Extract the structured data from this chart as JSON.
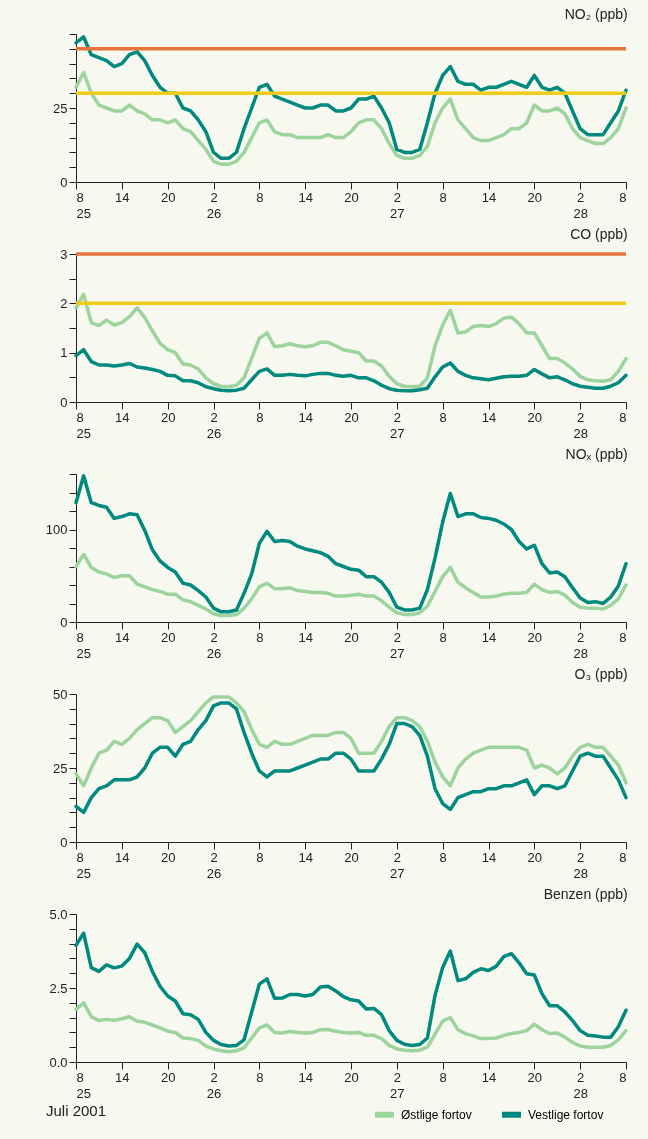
{
  "chart_data": [
    {
      "type": "line",
      "title": "NO₂ (ppb)",
      "x": [
        "2001-07-25T08:00",
        "2001-07-25T09:00",
        "2001-07-25T10:00",
        "2001-07-25T11:00",
        "2001-07-25T12:00",
        "2001-07-25T13:00",
        "2001-07-25T14:00",
        "2001-07-25T15:00",
        "2001-07-25T16:00",
        "2001-07-25T17:00",
        "2001-07-25T18:00",
        "2001-07-25T19:00",
        "2001-07-25T20:00",
        "2001-07-25T21:00",
        "2001-07-25T22:00",
        "2001-07-25T23:00",
        "2001-07-26T00:00",
        "2001-07-26T01:00",
        "2001-07-26T02:00",
        "2001-07-26T03:00",
        "2001-07-26T04:00",
        "2001-07-26T05:00",
        "2001-07-26T06:00",
        "2001-07-26T07:00",
        "2001-07-26T08:00",
        "2001-07-26T09:00",
        "2001-07-26T10:00",
        "2001-07-26T11:00",
        "2001-07-26T12:00",
        "2001-07-26T13:00",
        "2001-07-26T14:00",
        "2001-07-26T15:00",
        "2001-07-26T16:00",
        "2001-07-26T17:00",
        "2001-07-26T18:00",
        "2001-07-26T19:00",
        "2001-07-26T20:00",
        "2001-07-26T21:00",
        "2001-07-26T22:00",
        "2001-07-26T23:00",
        "2001-07-27T00:00",
        "2001-07-27T01:00",
        "2001-07-27T02:00",
        "2001-07-27T03:00",
        "2001-07-27T04:00",
        "2001-07-27T05:00",
        "2001-07-27T06:00",
        "2001-07-27T07:00",
        "2001-07-27T08:00",
        "2001-07-27T09:00",
        "2001-07-27T10:00",
        "2001-07-27T11:00",
        "2001-07-27T12:00",
        "2001-07-27T13:00",
        "2001-07-27T14:00",
        "2001-07-27T15:00",
        "2001-07-27T16:00",
        "2001-07-27T17:00",
        "2001-07-27T18:00",
        "2001-07-27T19:00",
        "2001-07-27T20:00",
        "2001-07-27T21:00",
        "2001-07-27T22:00",
        "2001-07-27T23:00",
        "2001-07-28T00:00",
        "2001-07-28T01:00",
        "2001-07-28T02:00",
        "2001-07-28T03:00",
        "2001-07-28T04:00",
        "2001-07-28T05:00",
        "2001-07-28T06:00",
        "2001-07-28T07:00",
        "2001-07-28T08:00"
      ],
      "xlim": [
        "2001-07-25T08:00",
        "2001-07-28T08:00"
      ],
      "xticks": [
        {
          "value": "2001-07-25T08:00",
          "label": "8\n25"
        },
        {
          "value": "2001-07-25T14:00",
          "label": "14"
        },
        {
          "value": "2001-07-25T20:00",
          "label": "20"
        },
        {
          "value": "2001-07-26T02:00",
          "label": "2\n26"
        },
        {
          "value": "2001-07-26T08:00",
          "label": "8"
        },
        {
          "value": "2001-07-26T14:00",
          "label": "14"
        },
        {
          "value": "2001-07-26T20:00",
          "label": "20"
        },
        {
          "value": "2001-07-27T02:00",
          "label": "2\n27"
        },
        {
          "value": "2001-07-27T08:00",
          "label": "8"
        },
        {
          "value": "2001-07-27T14:00",
          "label": "14"
        },
        {
          "value": "2001-07-27T20:00",
          "label": "20"
        },
        {
          "value": "2001-07-28T02:00",
          "label": "2\n28"
        },
        {
          "value": "2001-07-28T08:00",
          "label": "8"
        }
      ],
      "ylim": [
        0,
        50
      ],
      "yticks": [
        0,
        {
          "value": 5,
          "label": null
        },
        {
          "value": 10,
          "label": null
        },
        {
          "value": 15,
          "label": null
        },
        {
          "value": 20,
          "label": null
        },
        25,
        {
          "value": 30,
          "label": null
        },
        {
          "value": 35,
          "label": null
        },
        {
          "value": 40,
          "label": null
        },
        {
          "value": 45,
          "label": null
        },
        {
          "value": 50,
          "label": null
        }
      ],
      "ref_lines": [
        {
          "axis": "y",
          "value": 45,
          "color": "#e8743b"
        },
        {
          "axis": "y",
          "value": 30,
          "color": "#f0cc1a"
        }
      ],
      "series": [
        {
          "color": "#9dd49e",
          "values": [
            32,
            37,
            30,
            26,
            25,
            24,
            24,
            26,
            24,
            23,
            21,
            21,
            20,
            21,
            18,
            17,
            14,
            11,
            7,
            6,
            6,
            7,
            10,
            15,
            20,
            21,
            17,
            16,
            16,
            15,
            15,
            15,
            15,
            16,
            15,
            15,
            17,
            20,
            21,
            21,
            18,
            13,
            9,
            8,
            8,
            9,
            12,
            20,
            25,
            28,
            21,
            18,
            15,
            14,
            14,
            15,
            16,
            18,
            18,
            20,
            26,
            24,
            24,
            25,
            23,
            18,
            15,
            14,
            13,
            13,
            15,
            18,
            25
          ]
        },
        {
          "color": "#00897e",
          "values": [
            47,
            49,
            43,
            42,
            41,
            39,
            40,
            43,
            44,
            41,
            36,
            32,
            30,
            30,
            25,
            24,
            21,
            17,
            10,
            8,
            8,
            10,
            18,
            25,
            32,
            33,
            29,
            28,
            27,
            26,
            25,
            25,
            26,
            26,
            24,
            24,
            25,
            28,
            28,
            29,
            25,
            20,
            11,
            10,
            10,
            11,
            20,
            30,
            36,
            39,
            34,
            33,
            33,
            31,
            32,
            32,
            33,
            34,
            33,
            32,
            36,
            32,
            31,
            32,
            30,
            24,
            18,
            16,
            16,
            16,
            20,
            24,
            31
          ]
        }
      ]
    },
    {
      "type": "line",
      "title": "CO (ppb)",
      "x": [
        "2001-07-25T08:00",
        "2001-07-25T09:00",
        "2001-07-25T10:00",
        "2001-07-25T11:00",
        "2001-07-25T12:00",
        "2001-07-25T13:00",
        "2001-07-25T14:00",
        "2001-07-25T15:00",
        "2001-07-25T16:00",
        "2001-07-25T17:00",
        "2001-07-25T18:00",
        "2001-07-25T19:00",
        "2001-07-25T20:00",
        "2001-07-25T21:00",
        "2001-07-25T22:00",
        "2001-07-25T23:00",
        "2001-07-26T00:00",
        "2001-07-26T01:00",
        "2001-07-26T02:00",
        "2001-07-26T03:00",
        "2001-07-26T04:00",
        "2001-07-26T05:00",
        "2001-07-26T06:00",
        "2001-07-26T07:00",
        "2001-07-26T08:00",
        "2001-07-26T09:00",
        "2001-07-26T10:00",
        "2001-07-26T11:00",
        "2001-07-26T12:00",
        "2001-07-26T13:00",
        "2001-07-26T14:00",
        "2001-07-26T15:00",
        "2001-07-26T16:00",
        "2001-07-26T17:00",
        "2001-07-26T18:00",
        "2001-07-26T19:00",
        "2001-07-26T20:00",
        "2001-07-26T21:00",
        "2001-07-26T22:00",
        "2001-07-26T23:00",
        "2001-07-27T00:00",
        "2001-07-27T01:00",
        "2001-07-27T02:00",
        "2001-07-27T03:00",
        "2001-07-27T04:00",
        "2001-07-27T05:00",
        "2001-07-27T06:00",
        "2001-07-27T07:00",
        "2001-07-27T08:00",
        "2001-07-27T09:00",
        "2001-07-27T10:00",
        "2001-07-27T11:00",
        "2001-07-27T12:00",
        "2001-07-27T13:00",
        "2001-07-27T14:00",
        "2001-07-27T15:00",
        "2001-07-27T16:00",
        "2001-07-27T17:00",
        "2001-07-27T18:00",
        "2001-07-27T19:00",
        "2001-07-27T20:00",
        "2001-07-27T21:00",
        "2001-07-27T22:00",
        "2001-07-27T23:00",
        "2001-07-28T00:00",
        "2001-07-28T01:00",
        "2001-07-28T02:00",
        "2001-07-28T03:00",
        "2001-07-28T04:00",
        "2001-07-28T05:00",
        "2001-07-28T06:00",
        "2001-07-28T07:00",
        "2001-07-28T08:00"
      ],
      "xlim": [
        "2001-07-25T08:00",
        "2001-07-28T08:00"
      ],
      "xticks": [
        {
          "value": "2001-07-25T08:00",
          "label": "8\n25"
        },
        {
          "value": "2001-07-25T14:00",
          "label": "14"
        },
        {
          "value": "2001-07-25T20:00",
          "label": "20"
        },
        {
          "value": "2001-07-26T02:00",
          "label": "2\n26"
        },
        {
          "value": "2001-07-26T08:00",
          "label": "8"
        },
        {
          "value": "2001-07-26T14:00",
          "label": "14"
        },
        {
          "value": "2001-07-26T20:00",
          "label": "20"
        },
        {
          "value": "2001-07-27T02:00",
          "label": "2\n27"
        },
        {
          "value": "2001-07-27T08:00",
          "label": "8"
        },
        {
          "value": "2001-07-27T14:00",
          "label": "14"
        },
        {
          "value": "2001-07-27T20:00",
          "label": "20"
        },
        {
          "value": "2001-07-28T02:00",
          "label": "2\n28"
        },
        {
          "value": "2001-07-28T08:00",
          "label": "8"
        }
      ],
      "ylim": [
        0,
        3
      ],
      "yticks": [
        0,
        {
          "value": 0.5,
          "label": null
        },
        1,
        {
          "value": 1.5,
          "label": null
        },
        2,
        {
          "value": 2.5,
          "label": null
        },
        3
      ],
      "ref_lines": [
        {
          "axis": "y",
          "value": 3,
          "color": "#e8743b"
        },
        {
          "axis": "y",
          "value": 2,
          "color": "#f0cc1a"
        }
      ],
      "series": [
        {
          "color": "#9dd49e",
          "values": [
            1.91,
            2.18,
            1.61,
            1.55,
            1.66,
            1.56,
            1.61,
            1.73,
            1.91,
            1.71,
            1.44,
            1.19,
            1.06,
            1.0,
            0.77,
            0.75,
            0.67,
            0.49,
            0.37,
            0.32,
            0.31,
            0.34,
            0.49,
            0.89,
            1.29,
            1.4,
            1.12,
            1.14,
            1.18,
            1.14,
            1.12,
            1.14,
            1.21,
            1.21,
            1.14,
            1.06,
            1.03,
            1.0,
            0.83,
            0.83,
            0.73,
            0.52,
            0.37,
            0.32,
            0.31,
            0.32,
            0.49,
            1.14,
            1.56,
            1.86,
            1.4,
            1.42,
            1.53,
            1.55,
            1.53,
            1.59,
            1.7,
            1.72,
            1.59,
            1.4,
            1.4,
            1.14,
            0.88,
            0.88,
            0.79,
            0.67,
            0.52,
            0.45,
            0.43,
            0.42,
            0.45,
            0.62,
            0.88
          ]
        },
        {
          "color": "#00897e",
          "values": [
            0.94,
            1.06,
            0.82,
            0.75,
            0.75,
            0.73,
            0.75,
            0.78,
            0.71,
            0.69,
            0.66,
            0.62,
            0.54,
            0.53,
            0.43,
            0.43,
            0.39,
            0.31,
            0.27,
            0.24,
            0.23,
            0.24,
            0.28,
            0.45,
            0.62,
            0.67,
            0.54,
            0.54,
            0.56,
            0.54,
            0.53,
            0.56,
            0.58,
            0.58,
            0.54,
            0.52,
            0.54,
            0.49,
            0.49,
            0.43,
            0.34,
            0.27,
            0.24,
            0.23,
            0.23,
            0.25,
            0.28,
            0.51,
            0.71,
            0.79,
            0.62,
            0.54,
            0.49,
            0.47,
            0.45,
            0.48,
            0.51,
            0.52,
            0.52,
            0.54,
            0.66,
            0.57,
            0.49,
            0.51,
            0.45,
            0.37,
            0.32,
            0.3,
            0.28,
            0.28,
            0.32,
            0.39,
            0.54
          ]
        }
      ]
    },
    {
      "type": "line",
      "title": "NOₓ (ppb)",
      "x": [
        "2001-07-25T08:00",
        "2001-07-25T09:00",
        "2001-07-25T10:00",
        "2001-07-25T11:00",
        "2001-07-25T12:00",
        "2001-07-25T13:00",
        "2001-07-25T14:00",
        "2001-07-25T15:00",
        "2001-07-25T16:00",
        "2001-07-25T17:00",
        "2001-07-25T18:00",
        "2001-07-25T19:00",
        "2001-07-25T20:00",
        "2001-07-25T21:00",
        "2001-07-25T22:00",
        "2001-07-25T23:00",
        "2001-07-26T00:00",
        "2001-07-26T01:00",
        "2001-07-26T02:00",
        "2001-07-26T03:00",
        "2001-07-26T04:00",
        "2001-07-26T05:00",
        "2001-07-26T06:00",
        "2001-07-26T07:00",
        "2001-07-26T08:00",
        "2001-07-26T09:00",
        "2001-07-26T10:00",
        "2001-07-26T11:00",
        "2001-07-26T12:00",
        "2001-07-26T13:00",
        "2001-07-26T14:00",
        "2001-07-26T15:00",
        "2001-07-26T16:00",
        "2001-07-26T17:00",
        "2001-07-26T18:00",
        "2001-07-26T19:00",
        "2001-07-26T20:00",
        "2001-07-26T21:00",
        "2001-07-26T22:00",
        "2001-07-26T23:00",
        "2001-07-27T00:00",
        "2001-07-27T01:00",
        "2001-07-27T02:00",
        "2001-07-27T03:00",
        "2001-07-27T04:00",
        "2001-07-27T05:00",
        "2001-07-27T06:00",
        "2001-07-27T07:00",
        "2001-07-27T08:00",
        "2001-07-27T09:00",
        "2001-07-27T10:00",
        "2001-07-27T11:00",
        "2001-07-27T12:00",
        "2001-07-27T13:00",
        "2001-07-27T14:00",
        "2001-07-27T15:00",
        "2001-07-27T16:00",
        "2001-07-27T17:00",
        "2001-07-27T18:00",
        "2001-07-27T19:00",
        "2001-07-27T20:00",
        "2001-07-27T21:00",
        "2001-07-27T22:00",
        "2001-07-27T23:00",
        "2001-07-28T00:00",
        "2001-07-28T01:00",
        "2001-07-28T02:00",
        "2001-07-28T03:00",
        "2001-07-28T04:00",
        "2001-07-28T05:00",
        "2001-07-28T06:00",
        "2001-07-28T07:00",
        "2001-07-28T08:00"
      ],
      "xlim": [
        "2001-07-25T08:00",
        "2001-07-28T08:00"
      ],
      "xticks": [
        {
          "value": "2001-07-25T08:00",
          "label": "8\n25"
        },
        {
          "value": "2001-07-25T14:00",
          "label": "14"
        },
        {
          "value": "2001-07-25T20:00",
          "label": "20"
        },
        {
          "value": "2001-07-26T02:00",
          "label": "2\n26"
        },
        {
          "value": "2001-07-26T08:00",
          "label": "8"
        },
        {
          "value": "2001-07-26T14:00",
          "label": "14"
        },
        {
          "value": "2001-07-26T20:00",
          "label": "20"
        },
        {
          "value": "2001-07-27T02:00",
          "label": "2\n27"
        },
        {
          "value": "2001-07-27T08:00",
          "label": "8"
        },
        {
          "value": "2001-07-27T14:00",
          "label": "14"
        },
        {
          "value": "2001-07-27T20:00",
          "label": "20"
        },
        {
          "value": "2001-07-28T02:00",
          "label": "2\n28"
        },
        {
          "value": "2001-07-28T08:00",
          "label": "8"
        }
      ],
      "ylim": [
        0,
        160
      ],
      "yticks": [
        0,
        {
          "value": 20,
          "label": null
        },
        {
          "value": 40,
          "label": null
        },
        {
          "value": 60,
          "label": null
        },
        {
          "value": 80,
          "label": null
        },
        100,
        {
          "value": 120,
          "label": null
        },
        {
          "value": 140,
          "label": null
        },
        {
          "value": 160,
          "label": null
        }
      ],
      "series": [
        {
          "color": "#9dd49e",
          "values": [
            60,
            73,
            59,
            54,
            52,
            48,
            50,
            50,
            41,
            38,
            35,
            33,
            30,
            30,
            24,
            22,
            18,
            14,
            9,
            7,
            7,
            8,
            15,
            25,
            38,
            42,
            36,
            36,
            37,
            34,
            33,
            32,
            32,
            31,
            28,
            28,
            29,
            30,
            28,
            28,
            23,
            16,
            10,
            8,
            8,
            10,
            17,
            33,
            49,
            59,
            43,
            37,
            32,
            27,
            27,
            28,
            30,
            31,
            31,
            32,
            41,
            35,
            32,
            33,
            29,
            21,
            16,
            15,
            15,
            14,
            18,
            25,
            40
          ]
        },
        {
          "color": "#00897e",
          "values": [
            129,
            158,
            129,
            126,
            124,
            112,
            114,
            117,
            116,
            99,
            78,
            66,
            59,
            54,
            42,
            40,
            34,
            27,
            15,
            11,
            11,
            13,
            31,
            52,
            85,
            98,
            87,
            88,
            87,
            82,
            79,
            77,
            75,
            71,
            63,
            60,
            57,
            56,
            49,
            49,
            43,
            32,
            16,
            13,
            13,
            15,
            35,
            69,
            108,
            139,
            114,
            117,
            117,
            113,
            112,
            110,
            106,
            100,
            87,
            79,
            83,
            63,
            53,
            54,
            49,
            37,
            26,
            21,
            22,
            20,
            27,
            39,
            63
          ]
        }
      ]
    },
    {
      "type": "line",
      "title": "O₃ (ppb)",
      "x": [
        "2001-07-25T08:00",
        "2001-07-25T09:00",
        "2001-07-25T10:00",
        "2001-07-25T11:00",
        "2001-07-25T12:00",
        "2001-07-25T13:00",
        "2001-07-25T14:00",
        "2001-07-25T15:00",
        "2001-07-25T16:00",
        "2001-07-25T17:00",
        "2001-07-25T18:00",
        "2001-07-25T19:00",
        "2001-07-25T20:00",
        "2001-07-25T21:00",
        "2001-07-25T22:00",
        "2001-07-25T23:00",
        "2001-07-26T00:00",
        "2001-07-26T01:00",
        "2001-07-26T02:00",
        "2001-07-26T03:00",
        "2001-07-26T04:00",
        "2001-07-26T05:00",
        "2001-07-26T06:00",
        "2001-07-26T07:00",
        "2001-07-26T08:00",
        "2001-07-26T09:00",
        "2001-07-26T10:00",
        "2001-07-26T11:00",
        "2001-07-26T12:00",
        "2001-07-26T13:00",
        "2001-07-26T14:00",
        "2001-07-26T15:00",
        "2001-07-26T16:00",
        "2001-07-26T17:00",
        "2001-07-26T18:00",
        "2001-07-26T19:00",
        "2001-07-26T20:00",
        "2001-07-26T21:00",
        "2001-07-26T22:00",
        "2001-07-26T23:00",
        "2001-07-27T00:00",
        "2001-07-27T01:00",
        "2001-07-27T02:00",
        "2001-07-27T03:00",
        "2001-07-27T04:00",
        "2001-07-27T05:00",
        "2001-07-27T06:00",
        "2001-07-27T07:00",
        "2001-07-27T08:00",
        "2001-07-27T09:00",
        "2001-07-27T10:00",
        "2001-07-27T11:00",
        "2001-07-27T12:00",
        "2001-07-27T13:00",
        "2001-07-27T14:00",
        "2001-07-27T15:00",
        "2001-07-27T16:00",
        "2001-07-27T17:00",
        "2001-07-27T18:00",
        "2001-07-27T19:00",
        "2001-07-27T20:00",
        "2001-07-27T21:00",
        "2001-07-27T22:00",
        "2001-07-27T23:00",
        "2001-07-28T00:00",
        "2001-07-28T01:00",
        "2001-07-28T02:00",
        "2001-07-28T03:00",
        "2001-07-28T04:00",
        "2001-07-28T05:00",
        "2001-07-28T06:00",
        "2001-07-28T07:00",
        "2001-07-28T08:00"
      ],
      "xlim": [
        "2001-07-25T08:00",
        "2001-07-28T08:00"
      ],
      "xticks": [
        {
          "value": "2001-07-25T08:00",
          "label": "8\n25"
        },
        {
          "value": "2001-07-25T14:00",
          "label": "14"
        },
        {
          "value": "2001-07-25T20:00",
          "label": "20"
        },
        {
          "value": "2001-07-26T02:00",
          "label": "2\n26"
        },
        {
          "value": "2001-07-26T08:00",
          "label": "8"
        },
        {
          "value": "2001-07-26T14:00",
          "label": "14"
        },
        {
          "value": "2001-07-26T20:00",
          "label": "20"
        },
        {
          "value": "2001-07-27T02:00",
          "label": "2\n27"
        },
        {
          "value": "2001-07-27T08:00",
          "label": "8"
        },
        {
          "value": "2001-07-27T14:00",
          "label": "14"
        },
        {
          "value": "2001-07-27T20:00",
          "label": "20"
        },
        {
          "value": "2001-07-28T02:00",
          "label": "2\n28"
        },
        {
          "value": "2001-07-28T08:00",
          "label": "8"
        }
      ],
      "ylim": [
        0,
        50
      ],
      "yticks": [
        0,
        {
          "value": 5,
          "label": null
        },
        {
          "value": 10,
          "label": null
        },
        {
          "value": 15,
          "label": null
        },
        {
          "value": 20,
          "label": null
        },
        25,
        {
          "value": 30,
          "label": null
        },
        {
          "value": 35,
          "label": null
        },
        {
          "value": 40,
          "label": null
        },
        {
          "value": 45,
          "label": null
        },
        50
      ],
      "series": [
        {
          "color": "#9dd49e",
          "values": [
            23,
            19,
            25,
            30,
            31,
            34,
            33,
            35,
            38,
            40,
            42,
            42,
            41,
            37,
            39,
            41,
            44,
            47,
            49,
            49,
            49,
            47,
            44,
            38,
            33,
            32,
            34,
            33,
            33,
            34,
            35,
            36,
            36,
            36,
            37,
            37,
            35,
            30,
            30,
            30,
            34,
            39,
            42,
            42,
            41,
            39,
            34,
            27,
            22,
            19,
            25,
            28,
            30,
            31,
            32,
            32,
            32,
            32,
            32,
            31,
            25,
            26,
            25,
            23,
            25,
            29,
            32,
            33,
            32,
            32,
            29,
            26,
            20
          ]
        },
        {
          "color": "#00897e",
          "values": [
            12,
            10,
            15,
            18,
            19,
            21,
            21,
            21,
            22,
            25,
            30,
            32,
            32,
            29,
            33,
            34,
            38,
            41,
            46,
            47,
            47,
            45,
            37,
            30,
            24,
            22,
            24,
            24,
            24,
            25,
            26,
            27,
            28,
            28,
            30,
            30,
            28,
            24,
            24,
            24,
            28,
            33,
            40,
            40,
            39,
            36,
            29,
            18,
            13,
            11,
            15,
            16,
            17,
            17,
            18,
            18,
            19,
            19,
            20,
            21,
            16,
            19,
            19,
            18,
            19,
            24,
            29,
            30,
            29,
            29,
            25,
            21,
            15
          ]
        }
      ]
    },
    {
      "type": "line",
      "title": "Benzen (ppb)",
      "x": [
        "2001-07-25T08:00",
        "2001-07-25T09:00",
        "2001-07-25T10:00",
        "2001-07-25T11:00",
        "2001-07-25T12:00",
        "2001-07-25T13:00",
        "2001-07-25T14:00",
        "2001-07-25T15:00",
        "2001-07-25T16:00",
        "2001-07-25T17:00",
        "2001-07-25T18:00",
        "2001-07-25T19:00",
        "2001-07-25T20:00",
        "2001-07-25T21:00",
        "2001-07-25T22:00",
        "2001-07-25T23:00",
        "2001-07-26T00:00",
        "2001-07-26T01:00",
        "2001-07-26T02:00",
        "2001-07-26T03:00",
        "2001-07-26T04:00",
        "2001-07-26T05:00",
        "2001-07-26T06:00",
        "2001-07-26T07:00",
        "2001-07-26T08:00",
        "2001-07-26T09:00",
        "2001-07-26T10:00",
        "2001-07-26T11:00",
        "2001-07-26T12:00",
        "2001-07-26T13:00",
        "2001-07-26T14:00",
        "2001-07-26T15:00",
        "2001-07-26T16:00",
        "2001-07-26T17:00",
        "2001-07-26T18:00",
        "2001-07-26T19:00",
        "2001-07-26T20:00",
        "2001-07-26T21:00",
        "2001-07-26T22:00",
        "2001-07-26T23:00",
        "2001-07-27T00:00",
        "2001-07-27T01:00",
        "2001-07-27T02:00",
        "2001-07-27T03:00",
        "2001-07-27T04:00",
        "2001-07-27T05:00",
        "2001-07-27T06:00",
        "2001-07-27T07:00",
        "2001-07-27T08:00",
        "2001-07-27T09:00",
        "2001-07-27T10:00",
        "2001-07-27T11:00",
        "2001-07-27T12:00",
        "2001-07-27T13:00",
        "2001-07-27T14:00",
        "2001-07-27T15:00",
        "2001-07-27T16:00",
        "2001-07-27T17:00",
        "2001-07-27T18:00",
        "2001-07-27T19:00",
        "2001-07-27T20:00",
        "2001-07-27T21:00",
        "2001-07-27T22:00",
        "2001-07-27T23:00",
        "2001-07-28T00:00",
        "2001-07-28T01:00",
        "2001-07-28T02:00",
        "2001-07-28T03:00",
        "2001-07-28T04:00",
        "2001-07-28T05:00",
        "2001-07-28T06:00",
        "2001-07-28T07:00",
        "2001-07-28T08:00"
      ],
      "xlim": [
        "2001-07-25T08:00",
        "2001-07-28T08:00"
      ],
      "xticks": [
        {
          "value": "2001-07-25T08:00",
          "label": "8\n25"
        },
        {
          "value": "2001-07-25T14:00",
          "label": "14"
        },
        {
          "value": "2001-07-25T20:00",
          "label": "20"
        },
        {
          "value": "2001-07-26T02:00",
          "label": "2\n26"
        },
        {
          "value": "2001-07-26T08:00",
          "label": "8"
        },
        {
          "value": "2001-07-26T14:00",
          "label": "14"
        },
        {
          "value": "2001-07-26T20:00",
          "label": "20"
        },
        {
          "value": "2001-07-27T02:00",
          "label": "2\n27"
        },
        {
          "value": "2001-07-27T08:00",
          "label": "8"
        },
        {
          "value": "2001-07-27T14:00",
          "label": "14"
        },
        {
          "value": "2001-07-27T20:00",
          "label": "20"
        },
        {
          "value": "2001-07-28T02:00",
          "label": "2\n28"
        },
        {
          "value": "2001-07-28T08:00",
          "label": "8"
        }
      ],
      "ylim": [
        0,
        5
      ],
      "yticks": [
        {
          "value": 0,
          "label": "0.0"
        },
        {
          "value": 0.5,
          "label": null
        },
        {
          "value": 1,
          "label": null
        },
        {
          "value": 1.5,
          "label": null
        },
        {
          "value": 2,
          "label": null
        },
        2.5,
        {
          "value": 3,
          "label": null
        },
        {
          "value": 3.5,
          "label": null
        },
        {
          "value": 4,
          "label": null
        },
        {
          "value": 4.5,
          "label": null
        },
        {
          "value": 5,
          "label": "5.0"
        }
      ],
      "legend": "bottom right",
      "annotations": [
        "Juli 2001"
      ],
      "series": [
        {
          "name": "Østlige fortov",
          "color": "#9dd49e",
          "values": [
            1.78,
            2.0,
            1.53,
            1.4,
            1.44,
            1.41,
            1.46,
            1.53,
            1.38,
            1.34,
            1.25,
            1.15,
            1.04,
            1.0,
            0.81,
            0.79,
            0.73,
            0.54,
            0.44,
            0.38,
            0.35,
            0.38,
            0.48,
            0.81,
            1.15,
            1.25,
            1.0,
            0.98,
            1.03,
            1.0,
            0.98,
            1.0,
            1.09,
            1.1,
            1.04,
            1.0,
            0.98,
            1.0,
            0.9,
            0.9,
            0.79,
            0.56,
            0.44,
            0.4,
            0.38,
            0.4,
            0.5,
            0.94,
            1.38,
            1.5,
            1.09,
            0.96,
            0.88,
            0.79,
            0.79,
            0.81,
            0.9,
            0.96,
            1.0,
            1.06,
            1.28,
            1.09,
            0.96,
            0.98,
            0.84,
            0.66,
            0.54,
            0.5,
            0.5,
            0.5,
            0.56,
            0.75,
            1.06
          ]
        },
        {
          "name": "Vestlige fortov",
          "color": "#00897e",
          "values": [
            3.94,
            4.35,
            3.19,
            3.06,
            3.28,
            3.18,
            3.24,
            3.5,
            3.98,
            3.69,
            3.06,
            2.56,
            2.23,
            2.06,
            1.63,
            1.6,
            1.44,
            1.0,
            0.73,
            0.59,
            0.54,
            0.56,
            0.75,
            1.69,
            2.63,
            2.81,
            2.15,
            2.16,
            2.28,
            2.28,
            2.23,
            2.28,
            2.53,
            2.56,
            2.4,
            2.21,
            2.1,
            2.06,
            1.79,
            1.81,
            1.6,
            1.06,
            0.73,
            0.6,
            0.56,
            0.59,
            0.81,
            2.25,
            3.19,
            3.75,
            2.75,
            2.81,
            3.03,
            3.15,
            3.09,
            3.23,
            3.56,
            3.66,
            3.35,
            2.98,
            2.94,
            2.31,
            1.9,
            1.9,
            1.69,
            1.4,
            1.06,
            0.9,
            0.88,
            0.84,
            0.84,
            1.19,
            1.75
          ]
        }
      ]
    }
  ]
}
